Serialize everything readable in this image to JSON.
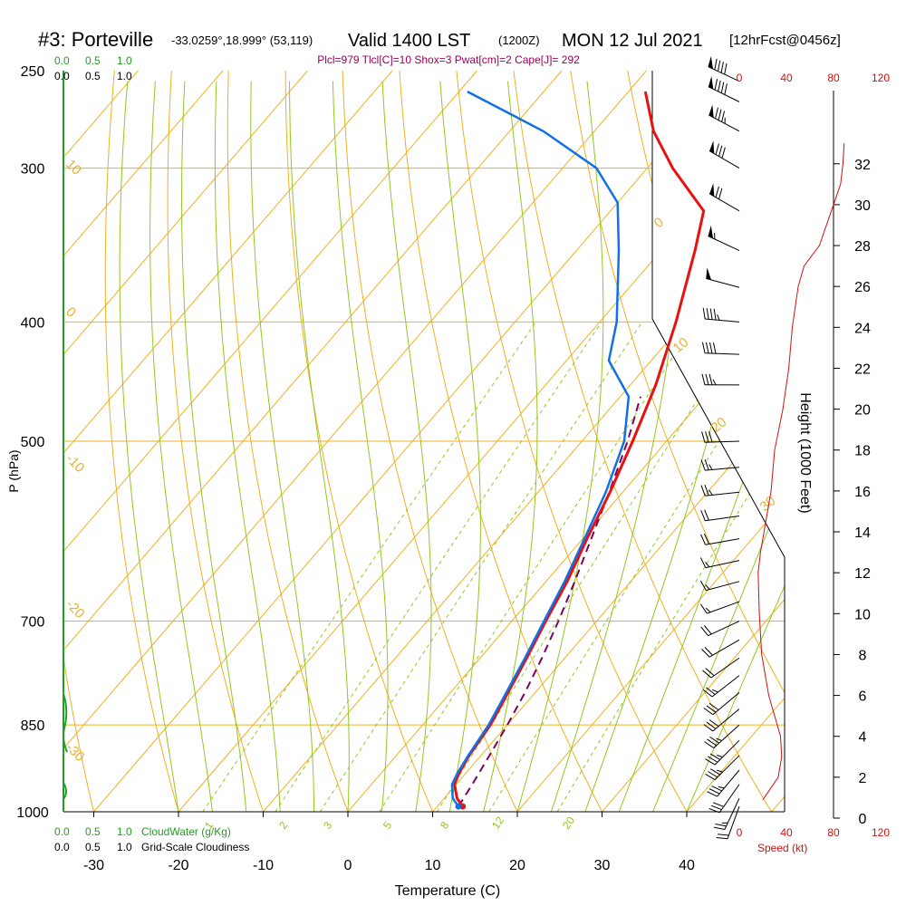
{
  "header": {
    "station": "#3: Porteville",
    "location": "-33.0259°,18.999° (53,119)",
    "valid_main": "Valid 1400 LST",
    "valid_utc": "(1200Z)",
    "date": "MON 12 Jul 2021",
    "forecast": "[12hrFcst@0456z]",
    "indices": "Plcl=979 Tlcl[C]=10 Shox=3 Pwat[cm]=2 Cape[J]= 292"
  },
  "labels": {
    "cw_top_0": "0.0",
    "cw_top_1": "0.5",
    "cw_top_2": "1.0",
    "cl_top_0": "0.0",
    "cl_top_1": "0.5",
    "cl_top_2": "1.0",
    "cw_bot_0": "0.0",
    "cw_bot_1": "0.5",
    "cw_bot_2": "1.0",
    "cw_title": "CloudWater (g/Kg)",
    "cl_bot_0": "0.0",
    "cl_bot_1": "0.5",
    "cl_bot_2": "1.0",
    "cl_title": "Grid-Scale Cloudiness",
    "spd_title": "Speed (kt)"
  },
  "colors": {
    "isotherm": "#f0b020",
    "dry_adiabat": "#f0b020",
    "moist_adiabat": "#90c820",
    "mixing_ratio": "#90c820",
    "temperature": "#e81010",
    "dewpoint": "#1070e8",
    "parcel": "#800060",
    "cloud": "#20a020",
    "speed": "#d01010",
    "indices": "#9a0058"
  },
  "chart_data": {
    "type": "line",
    "title": "#3: Porteville -33.0259°,18.999° (53,119) Valid 1400 LST (1200Z) MON 12 Jul 2021 [12hrFcst@0456z]",
    "xlabel": "Temperature (C)",
    "ylabel": "P (hPa)",
    "y2label": "Height (1000 Feet)",
    "pressure_ticks": [
      250,
      300,
      400,
      500,
      700,
      850,
      1000
    ],
    "temperature_ticks": [
      -30,
      -20,
      -10,
      0,
      10,
      20,
      30,
      40
    ],
    "height_ticks": [
      0,
      2,
      4,
      6,
      8,
      10,
      12,
      14,
      16,
      18,
      20,
      22,
      24,
      26,
      28,
      30,
      32
    ],
    "speed_ticks": [
      "0",
      "40",
      "80",
      "120"
    ],
    "mixing_ratio_labels": [
      "1",
      "2",
      "3",
      "5",
      "8",
      "12",
      "20"
    ],
    "dry_adiabat_labels": [
      "10",
      "0",
      "-10",
      "-20",
      "-30"
    ],
    "moist_adiabat_labels": [
      "0",
      "10",
      "20",
      "30"
    ],
    "series": [
      {
        "name": "Temperature",
        "points": [
          [
            990,
            13.0
          ],
          [
            975,
            11.5
          ],
          [
            950,
            9.8
          ],
          [
            930,
            9.2
          ],
          [
            900,
            8.6
          ],
          [
            850,
            8.0
          ],
          [
            800,
            6.8
          ],
          [
            750,
            5.5
          ],
          [
            700,
            4.0
          ],
          [
            650,
            2.5
          ],
          [
            600,
            0.5
          ],
          [
            550,
            -1.5
          ],
          [
            500,
            -4.0
          ],
          [
            450,
            -7.0
          ],
          [
            400,
            -11.0
          ],
          [
            350,
            -16.0
          ],
          [
            325,
            -19.0
          ],
          [
            300,
            -27.0
          ],
          [
            280,
            -33.0
          ],
          [
            260,
            -38.0
          ]
        ]
      },
      {
        "name": "Dewpoint",
        "points": [
          [
            990,
            12.5
          ],
          [
            975,
            11.0
          ],
          [
            950,
            9.5
          ],
          [
            930,
            9.0
          ],
          [
            900,
            8.5
          ],
          [
            850,
            7.8
          ],
          [
            800,
            6.6
          ],
          [
            750,
            5.3
          ],
          [
            700,
            3.8
          ],
          [
            650,
            2.2
          ],
          [
            600,
            0.2
          ],
          [
            550,
            -2.0
          ],
          [
            500,
            -5.0
          ],
          [
            460,
            -9.0
          ],
          [
            430,
            -15.0
          ],
          [
            400,
            -18.0
          ],
          [
            350,
            -25.0
          ],
          [
            320,
            -30.0
          ],
          [
            300,
            -36.0
          ],
          [
            280,
            -46.0
          ],
          [
            260,
            -59.0
          ]
        ]
      },
      {
        "name": "Parcel",
        "points": [
          [
            990,
            12.5
          ],
          [
            950,
            11.9
          ],
          [
            900,
            11.0
          ],
          [
            850,
            10.0
          ],
          [
            800,
            8.8
          ],
          [
            750,
            7.3
          ],
          [
            700,
            5.5
          ],
          [
            650,
            3.4
          ],
          [
            600,
            1.0
          ],
          [
            550,
            -1.6
          ],
          [
            500,
            -4.6
          ],
          [
            460,
            -7.6
          ]
        ]
      }
    ],
    "wind_speed_profile": [
      [
        0.9,
        20
      ],
      [
        2,
        33
      ],
      [
        3,
        36
      ],
      [
        4,
        35
      ],
      [
        5,
        30
      ],
      [
        6,
        25
      ],
      [
        8,
        19
      ],
      [
        10,
        17
      ],
      [
        12,
        16
      ],
      [
        13,
        18
      ],
      [
        16,
        27
      ],
      [
        18,
        30
      ],
      [
        20,
        37
      ],
      [
        22,
        42
      ],
      [
        24,
        45
      ],
      [
        26,
        50
      ],
      [
        27,
        55
      ],
      [
        28,
        68
      ],
      [
        30,
        80
      ],
      [
        31,
        86
      ],
      [
        32,
        88
      ],
      [
        33,
        89
      ]
    ],
    "wind_barbs": [
      {
        "p": 990,
        "dir": 200,
        "spd": 20
      },
      {
        "p": 975,
        "dir": 205,
        "spd": 25
      },
      {
        "p": 950,
        "dir": 215,
        "spd": 30
      },
      {
        "p": 925,
        "dir": 220,
        "spd": 33
      },
      {
        "p": 900,
        "dir": 225,
        "spd": 35
      },
      {
        "p": 875,
        "dir": 225,
        "spd": 35
      },
      {
        "p": 850,
        "dir": 228,
        "spd": 33
      },
      {
        "p": 825,
        "dir": 230,
        "spd": 30
      },
      {
        "p": 800,
        "dir": 230,
        "spd": 28
      },
      {
        "p": 775,
        "dir": 232,
        "spd": 25
      },
      {
        "p": 750,
        "dir": 235,
        "spd": 22
      },
      {
        "p": 725,
        "dir": 240,
        "spd": 20
      },
      {
        "p": 700,
        "dir": 245,
        "spd": 18
      },
      {
        "p": 675,
        "dir": 250,
        "spd": 17
      },
      {
        "p": 650,
        "dir": 255,
        "spd": 16
      },
      {
        "p": 625,
        "dir": 258,
        "spd": 16
      },
      {
        "p": 600,
        "dir": 260,
        "spd": 18
      },
      {
        "p": 575,
        "dir": 262,
        "spd": 20
      },
      {
        "p": 550,
        "dir": 264,
        "spd": 24
      },
      {
        "p": 525,
        "dir": 265,
        "spd": 27
      },
      {
        "p": 500,
        "dir": 268,
        "spd": 30
      },
      {
        "p": 450,
        "dir": 270,
        "spd": 37
      },
      {
        "p": 425,
        "dir": 272,
        "spd": 42
      },
      {
        "p": 400,
        "dir": 275,
        "spd": 45
      },
      {
        "p": 375,
        "dir": 285,
        "spd": 50
      },
      {
        "p": 350,
        "dir": 295,
        "spd": 55
      },
      {
        "p": 325,
        "dir": 300,
        "spd": 68
      },
      {
        "p": 300,
        "dir": 300,
        "spd": 80
      },
      {
        "p": 280,
        "dir": 298,
        "spd": 86
      },
      {
        "p": 265,
        "dir": 296,
        "spd": 88
      },
      {
        "p": 255,
        "dir": 295,
        "spd": 89
      }
    ]
  }
}
